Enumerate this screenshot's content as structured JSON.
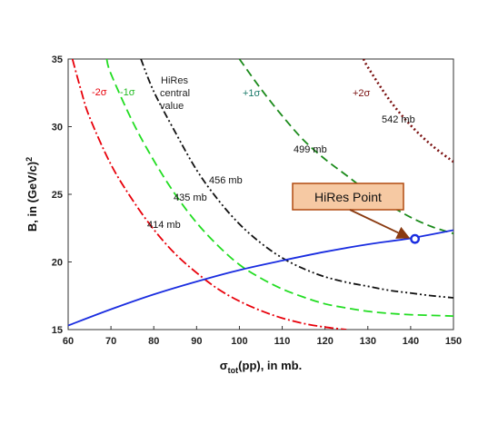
{
  "chart_data": {
    "type": "line",
    "xlabel": {
      "main": "σ",
      "sub": "tot",
      "rest": "(pp), in mb."
    },
    "ylabel": {
      "main": "B, in (GeV/c)",
      "sup": "2"
    },
    "xlim": [
      60,
      150
    ],
    "ylim": [
      15,
      35
    ],
    "x_ticks": [
      60,
      70,
      80,
      90,
      100,
      110,
      120,
      130,
      140,
      150
    ],
    "y_ticks": [
      15,
      20,
      25,
      30,
      35
    ],
    "grid": false,
    "series": [
      {
        "label": "414 mb",
        "color": "#e8000a",
        "dash": "10,3,2,3",
        "points": [
          [
            61,
            35
          ],
          [
            63,
            32.7
          ],
          [
            65,
            30.7
          ],
          [
            70,
            27.2
          ],
          [
            75,
            24.6
          ],
          [
            80,
            22.4
          ],
          [
            85,
            20.6
          ],
          [
            90,
            19.2
          ],
          [
            95,
            18.0
          ],
          [
            100,
            17.1
          ],
          [
            105,
            16.4
          ],
          [
            110,
            15.85
          ],
          [
            115,
            15.45
          ],
          [
            120,
            15.18
          ],
          [
            125,
            15.0
          ]
        ]
      },
      {
        "label": "435 mb",
        "color": "#22dd22",
        "dash": "10,5",
        "points": [
          [
            69,
            35
          ],
          [
            70,
            33.9
          ],
          [
            75,
            30.4
          ],
          [
            80,
            27.5
          ],
          [
            85,
            25.0
          ],
          [
            90,
            22.9
          ],
          [
            95,
            21.2
          ],
          [
            100,
            19.8
          ],
          [
            105,
            18.8
          ],
          [
            110,
            18.0
          ],
          [
            115,
            17.4
          ],
          [
            120,
            16.9
          ],
          [
            125,
            16.6
          ],
          [
            130,
            16.35
          ],
          [
            135,
            16.2
          ],
          [
            140,
            16.1
          ],
          [
            145,
            16.05
          ],
          [
            150,
            16.0
          ]
        ]
      },
      {
        "label": "456 mb",
        "color": "#111111",
        "dash": "8,3,2,3,2,3",
        "points": [
          [
            77,
            35
          ],
          [
            80,
            32.6
          ],
          [
            85,
            29.6
          ],
          [
            90,
            26.8
          ],
          [
            95,
            24.6
          ],
          [
            100,
            22.8
          ],
          [
            105,
            21.4
          ],
          [
            110,
            20.3
          ],
          [
            115,
            19.5
          ],
          [
            120,
            18.9
          ],
          [
            125,
            18.5
          ],
          [
            130,
            18.2
          ],
          [
            135,
            17.9
          ],
          [
            140,
            17.7
          ],
          [
            145,
            17.5
          ],
          [
            150,
            17.35
          ]
        ]
      },
      {
        "label": "499 mb",
        "color": "#1a8a1a",
        "dash": "9,5",
        "points": [
          [
            100,
            35
          ],
          [
            105,
            32.8
          ],
          [
            110,
            30.8
          ],
          [
            115,
            29.0
          ],
          [
            120,
            27.6
          ],
          [
            125,
            26.4
          ],
          [
            130,
            25.2
          ],
          [
            135,
            24.2
          ],
          [
            140,
            23.3
          ],
          [
            145,
            22.6
          ],
          [
            150,
            22.1
          ]
        ]
      },
      {
        "label": "542 mb",
        "color": "#7a1010",
        "dash": "2,3",
        "points": [
          [
            129,
            35
          ],
          [
            130,
            34.4
          ],
          [
            135,
            32.0
          ],
          [
            140,
            30.1
          ],
          [
            145,
            28.6
          ],
          [
            150,
            27.4
          ]
        ]
      },
      {
        "label": "",
        "color": "#1a2de0",
        "dash": "",
        "points": [
          [
            60,
            15.3
          ],
          [
            70,
            16.5
          ],
          [
            80,
            17.6
          ],
          [
            90,
            18.55
          ],
          [
            100,
            19.4
          ],
          [
            110,
            20.1
          ],
          [
            120,
            20.75
          ],
          [
            130,
            21.3
          ],
          [
            140,
            21.75
          ],
          [
            150,
            22.35
          ]
        ]
      }
    ],
    "marker": {
      "x": 141,
      "y": 21.7,
      "color": "#1a2de0"
    },
    "annotations": [
      {
        "id": "m2s",
        "text": "-2σ",
        "color": "#e8000a"
      },
      {
        "id": "m1s",
        "text": "-1σ",
        "color": "#22bb22"
      },
      {
        "id": "central",
        "lines": [
          "HiRes",
          "central",
          "value"
        ],
        "color": "#222222"
      },
      {
        "id": "p1s",
        "text": "+1σ",
        "color": "#1a7a6a"
      },
      {
        "id": "p2s",
        "text": "+2σ",
        "color": "#7a1010"
      }
    ],
    "callout": {
      "text": "HiRes Point",
      "fill": "#f6c9a3",
      "border": "#b04a10",
      "arrow_color": "#8a3a10"
    }
  }
}
